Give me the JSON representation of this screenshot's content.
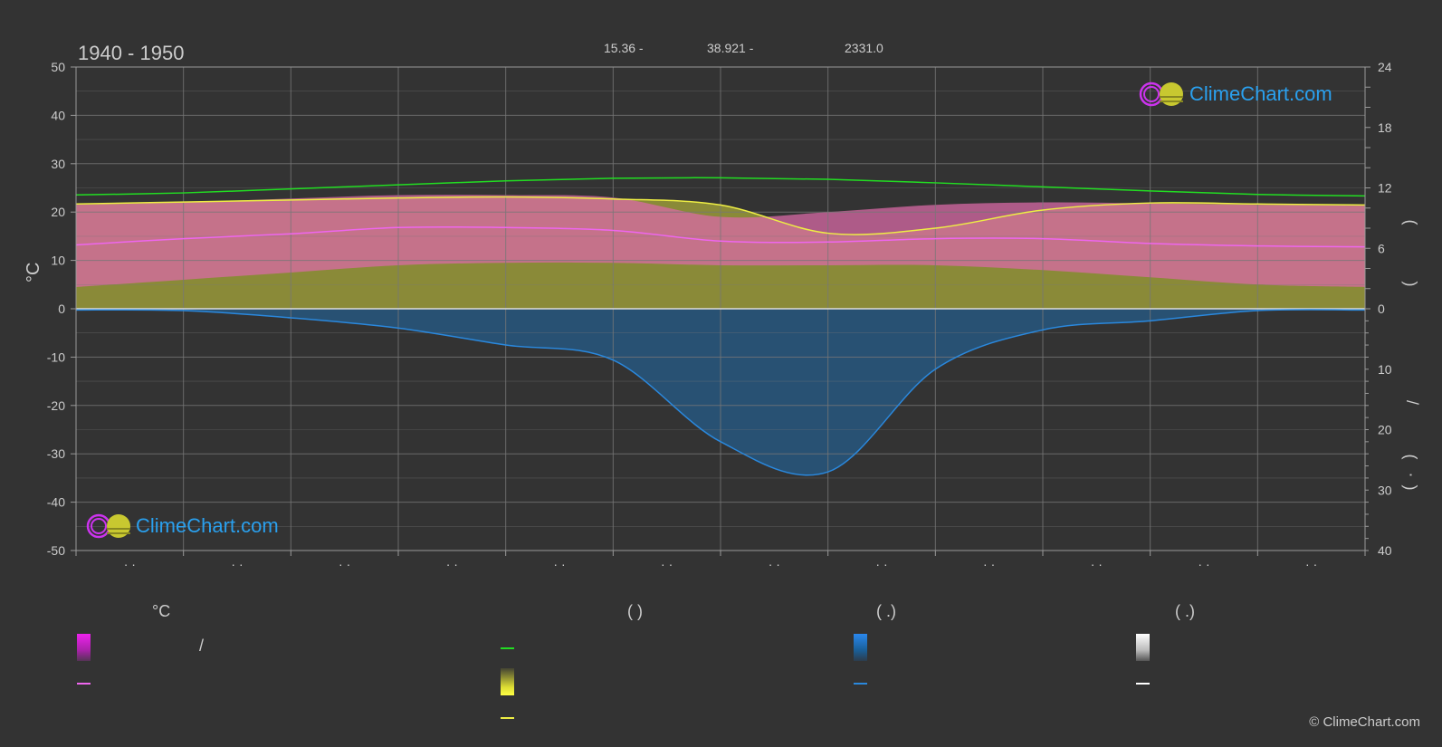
{
  "header": {
    "period": "1940 - 1950",
    "coords": {
      "lat": "15.36 -",
      "lon": "38.921 -",
      "elev": "2331.0"
    }
  },
  "watermark": {
    "brand": "ClimeChart.com",
    "copyright": "© ClimeChart.com"
  },
  "colors": {
    "background": "#333333",
    "grid": "#777777",
    "daylight": "#22dd22",
    "sunshine": "#eeee44",
    "mean_temp": "#ee66ee",
    "precipitation": "#2a88dd",
    "temp_band": "#d86aa6",
    "sunshine_band": "#9a9a3a",
    "brand": "#2aa0ee"
  },
  "legend": {
    "col1": {
      "title": "°C",
      "items": [
        {
          "label": "/"
        },
        {
          "label": ""
        }
      ]
    },
    "col2": {
      "title": "(          )",
      "items": [
        {
          "label": ""
        },
        {
          "label": ""
        },
        {
          "label": ""
        }
      ]
    },
    "col3": {
      "title": "(   .)",
      "items": [
        {
          "label": ""
        },
        {
          "label": ""
        }
      ]
    },
    "col4": {
      "title": "(   .)",
      "items": [
        {
          "label": ""
        },
        {
          "label": ""
        }
      ]
    }
  },
  "chart_data": {
    "type": "line",
    "x_tick_labels": [
      "· ·",
      "· ·",
      "· ·",
      "· ·",
      "· ·",
      "· ·",
      "· ·",
      "· ·",
      "· ·",
      "· ·",
      "· ·",
      "· ·"
    ],
    "left_axis": {
      "label": "°C",
      "range": [
        -50,
        50
      ],
      "ticks": [
        50,
        40,
        30,
        20,
        10,
        0,
        -10,
        -20,
        -30,
        -40,
        -50
      ]
    },
    "right_axis_hours": {
      "range": [
        0,
        24
      ],
      "ticks": [
        24,
        18,
        12,
        6,
        0
      ],
      "label_glyphs": [
        "(",
        ")"
      ]
    },
    "right_axis_precip": {
      "range": [
        0,
        40
      ],
      "ticks": [
        0,
        10,
        20,
        30,
        40
      ],
      "label_glyphs": [
        "/",
        "(",
        "·",
        ")"
      ]
    },
    "grid": true,
    "series": [
      {
        "key": "daylight",
        "axis": "hours",
        "values": [
          11.3,
          11.5,
          11.9,
          12.3,
          12.7,
          12.95,
          13.0,
          12.85,
          12.5,
          12.1,
          11.7,
          11.35,
          11.2
        ]
      },
      {
        "key": "sunshine",
        "axis": "hours",
        "values": [
          10.4,
          10.6,
          10.8,
          11.0,
          11.1,
          10.9,
          10.3,
          7.5,
          8.0,
          9.8,
          10.5,
          10.4,
          10.3
        ]
      },
      {
        "key": "mean_temp",
        "axis": "temp",
        "values": [
          13.2,
          14.5,
          15.5,
          16.8,
          16.8,
          16.2,
          14.0,
          13.8,
          14.5,
          14.5,
          13.5,
          13.0,
          12.8
        ]
      },
      {
        "key": "precipitation",
        "axis": "precip",
        "values": [
          0.2,
          0.3,
          1.5,
          3.2,
          6.0,
          8.5,
          22.0,
          27.0,
          10.0,
          3.5,
          2.0,
          0.3,
          0.2
        ]
      }
    ],
    "temp_band": {
      "upper": [
        21.5,
        22.0,
        22.8,
        23.5,
        23.5,
        23.0,
        19.0,
        20.0,
        21.5,
        22.0,
        21.8,
        21.5,
        21.3
      ],
      "lower": [
        4.5,
        6.0,
        7.5,
        9.0,
        9.5,
        9.5,
        9.0,
        9.0,
        9.0,
        8.0,
        6.5,
        5.0,
        4.5
      ]
    }
  }
}
